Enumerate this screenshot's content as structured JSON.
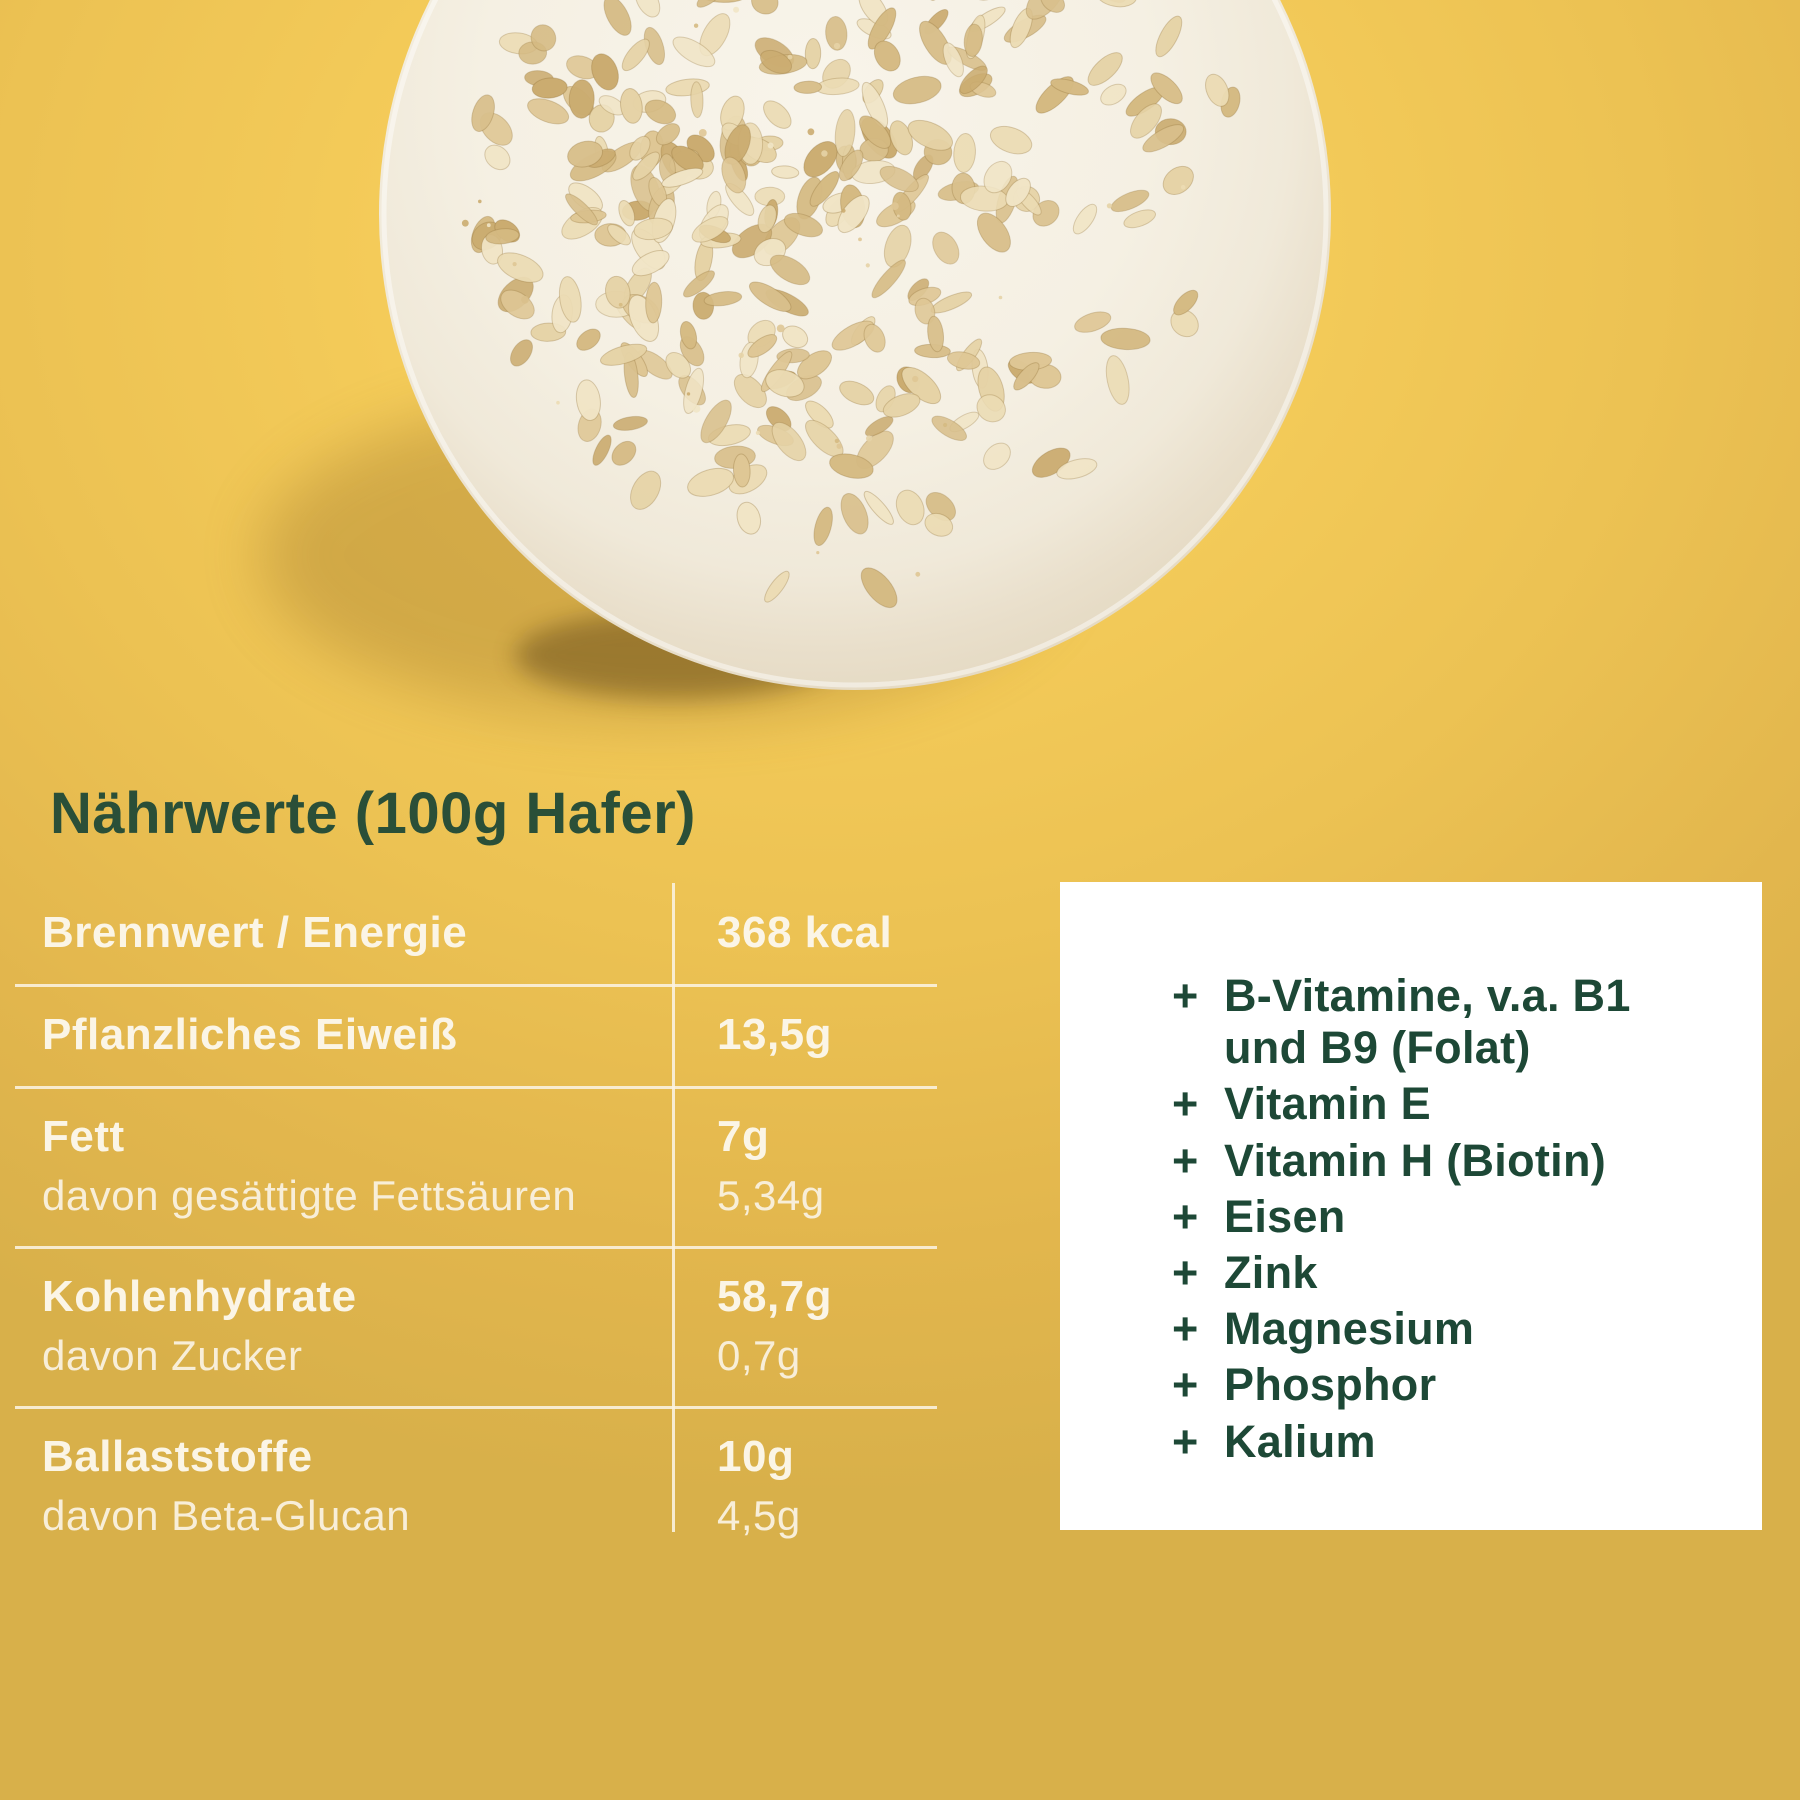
{
  "title": "Nährwerte (100g Hafer)",
  "nutrition_table": {
    "rows": [
      {
        "label": "Brennwert / Energie",
        "value": "368 kcal"
      },
      {
        "label": "Pflanzliches Eiweiß",
        "value": "13,5g"
      },
      {
        "label": "Fett",
        "value": "7g",
        "sub_label": "davon gesättigte Fettsäuren",
        "sub_value": "5,34g"
      },
      {
        "label": "Kohlenhydrate",
        "value": "58,7g",
        "sub_label": "davon Zucker",
        "sub_value": "0,7g"
      },
      {
        "label": "Ballaststoffe",
        "value": "10g",
        "sub_label": "davon Beta-Glucan",
        "sub_value": "4,5g"
      }
    ]
  },
  "micronutrients": {
    "bullet": "+",
    "items": [
      "B-Vitamine, v.a. B1\nund B9 (Folat)",
      "Vitamin E",
      "Vitamin H (Biotin)",
      "Eisen",
      "Zink",
      "Magnesium",
      "Phosphor",
      "Kalium"
    ]
  },
  "colors": {
    "background_yellow": "#ecc253",
    "accent_green": "#1d4836",
    "table_text": "#fbf5e6",
    "panel_background": "#ffffff",
    "plate_white": "#f5f0e3"
  }
}
